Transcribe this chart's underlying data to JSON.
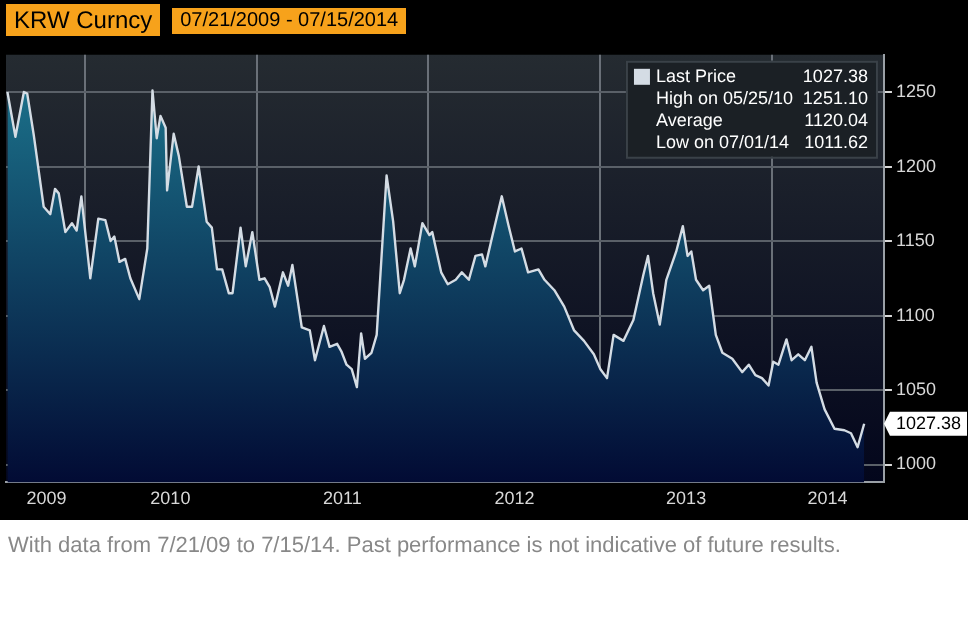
{
  "chart_data": {
    "type": "area",
    "title": "KRW Curncy",
    "subtitle": "07/21/2009 - 07/15/2014",
    "x": [
      "2009-07-21",
      "2009-08-07",
      "2009-08-25",
      "2009-09-01",
      "2009-09-15",
      "2009-10-06",
      "2009-10-20",
      "2009-10-30",
      "2009-11-07",
      "2009-11-21",
      "2009-12-05",
      "2009-12-15",
      "2009-12-25",
      "2010-01-13",
      "2010-01-30",
      "2010-02-14",
      "2010-02-25",
      "2010-03-05",
      "2010-03-16",
      "2010-03-28",
      "2010-04-08",
      "2010-04-27",
      "2010-05-14",
      "2010-05-25",
      "2010-06-03",
      "2010-06-11",
      "2010-06-22",
      "2010-06-25",
      "2010-07-09",
      "2010-07-20",
      "2010-08-06",
      "2010-08-17",
      "2010-08-31",
      "2010-09-17",
      "2010-09-28",
      "2010-10-09",
      "2010-10-20",
      "2010-11-03",
      "2010-11-11",
      "2010-11-28",
      "2010-12-09",
      "2010-12-23",
      "2011-01-07",
      "2011-01-18",
      "2011-01-29",
      "2011-02-09",
      "2011-02-26",
      "2011-03-09",
      "2011-03-18",
      "2011-04-07",
      "2011-04-24",
      "2011-05-05",
      "2011-05-24",
      "2011-06-05",
      "2011-06-21",
      "2011-06-30",
      "2011-07-11",
      "2011-07-22",
      "2011-08-02",
      "2011-08-11",
      "2011-08-19",
      "2011-09-02",
      "2011-09-13",
      "2011-10-04",
      "2011-10-18",
      "2011-11-01",
      "2011-11-10",
      "2011-11-24",
      "2011-12-03",
      "2011-12-19",
      "2012-01-03",
      "2012-01-09",
      "2012-01-28",
      "2012-02-11",
      "2012-02-28",
      "2012-03-12",
      "2012-03-27",
      "2012-04-10",
      "2012-04-24",
      "2012-05-01",
      "2012-05-15",
      "2012-06-05",
      "2012-06-19",
      "2012-07-03",
      "2012-07-17",
      "2012-07-31",
      "2012-08-22",
      "2012-09-04",
      "2012-09-25",
      "2012-10-16",
      "2012-11-06",
      "2012-11-27",
      "2012-12-18",
      "2013-01-01",
      "2013-01-15",
      "2013-01-29",
      "2013-02-19",
      "2013-03-12",
      "2013-04-02",
      "2013-04-12",
      "2013-04-23",
      "2013-05-07",
      "2013-05-21",
      "2013-06-11",
      "2013-06-25",
      "2013-07-05",
      "2013-07-13",
      "2013-07-23",
      "2013-08-07",
      "2013-08-20",
      "2013-09-03",
      "2013-09-17",
      "2013-10-08",
      "2013-10-29",
      "2013-11-12",
      "2013-11-26",
      "2013-12-10",
      "2013-12-24",
      "2014-01-03",
      "2014-01-14",
      "2014-01-31",
      "2014-02-11",
      "2014-02-25",
      "2014-03-11",
      "2014-03-25",
      "2014-04-05",
      "2014-04-22",
      "2014-05-13",
      "2014-06-03",
      "2014-06-17",
      "2014-07-01",
      "2014-07-15"
    ],
    "series": [
      {
        "name": "Last Price",
        "color": "#d4dce4",
        "values": [
          1250,
          1220,
          1250,
          1249,
          1221,
          1173,
          1168,
          1185,
          1182,
          1156,
          1162,
          1157,
          1180,
          1125,
          1165,
          1164,
          1150,
          1153,
          1136,
          1138,
          1125,
          1111,
          1145,
          1251.1,
          1219,
          1234,
          1226,
          1184,
          1222,
          1207,
          1173,
          1173,
          1200,
          1163,
          1159,
          1131,
          1131,
          1115,
          1115,
          1159,
          1133,
          1156,
          1124,
          1125,
          1119,
          1106,
          1129,
          1120,
          1134,
          1092,
          1090,
          1070,
          1093,
          1079,
          1081,
          1076,
          1067,
          1064,
          1052,
          1088,
          1071,
          1075,
          1087,
          1194,
          1163,
          1115,
          1124,
          1145,
          1133,
          1162,
          1154,
          1156,
          1129,
          1121,
          1124,
          1129,
          1124,
          1140,
          1141,
          1133,
          1152,
          1180,
          1161,
          1143,
          1145,
          1129,
          1131,
          1124,
          1117,
          1106,
          1090,
          1083,
          1074,
          1064,
          1058,
          1087,
          1083,
          1097,
          1127,
          1140,
          1115,
          1094,
          1124,
          1143,
          1160,
          1140,
          1143,
          1124,
          1117,
          1120,
          1087,
          1075,
          1071,
          1062,
          1067,
          1060,
          1058,
          1053,
          1069,
          1067,
          1084,
          1070,
          1074,
          1070,
          1079,
          1055,
          1037,
          1024,
          1023,
          1021,
          1011.62,
          1027.38
        ]
      }
    ],
    "xlim": [
      "2009-07-18",
      "2014-08-26"
    ],
    "xticks": [
      {
        "value": "2009-10-12",
        "label": "2009"
      },
      {
        "value": "2010-01-01",
        "label": null
      },
      {
        "value": "2010-07-02",
        "label": "2010"
      },
      {
        "value": "2011-01-01",
        "label": null
      },
      {
        "value": "2011-07-02",
        "label": "2011"
      },
      {
        "value": "2012-01-01",
        "label": null
      },
      {
        "value": "2012-07-02",
        "label": "2012"
      },
      {
        "value": "2013-01-01",
        "label": null
      },
      {
        "value": "2013-07-02",
        "label": "2013"
      },
      {
        "value": "2014-01-01",
        "label": null
      },
      {
        "value": "2014-04-28",
        "label": "2014"
      }
    ],
    "ylim": [
      988,
      1275
    ],
    "yticks": [
      1000,
      1050,
      1100,
      1150,
      1200,
      1250
    ],
    "grid": true,
    "legend": "top right",
    "annotations": [
      "1027.38",
      "High on 05/25/10 1251.10",
      "Average 1120.04",
      "Low on 07/01/14 1011.62",
      {
        "text": "1027.38",
        "x": "2014-07-15",
        "y": 1027.38
      },
      "With data from 7/21/09 to 7/15/14. Past performance is not indicative of future results."
    ]
  }
}
